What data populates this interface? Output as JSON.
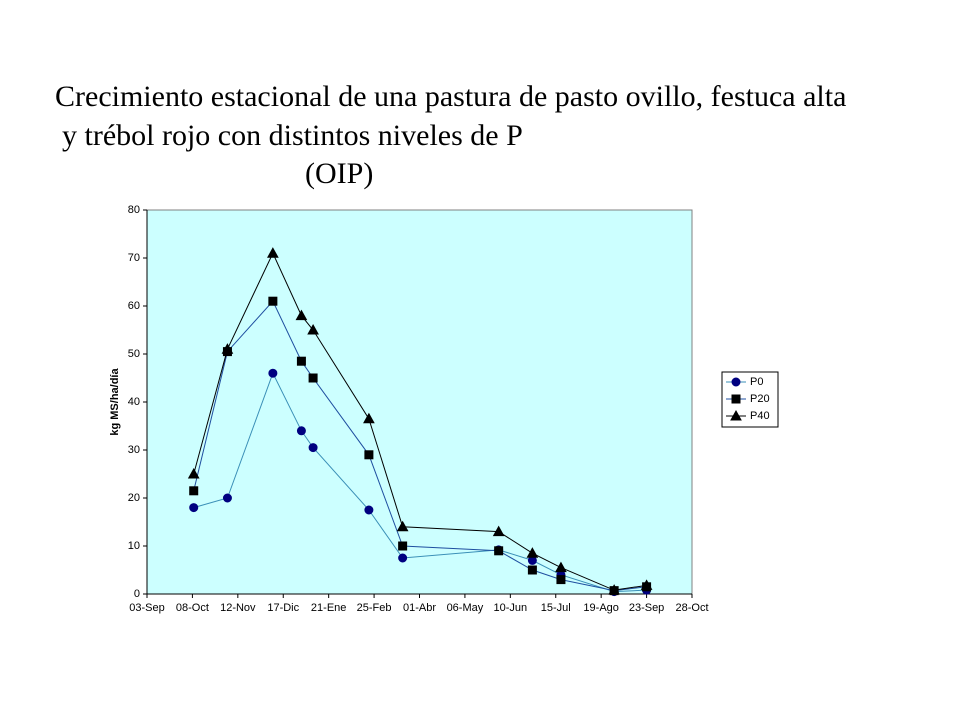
{
  "chart_data": {
    "type": "line",
    "title": [
      "Crecimiento estacional de una pastura de pasto ovillo,  festuca alta",
      "y trébol rojo con distintos niveles de P",
      "(OIP)"
    ],
    "y_label": "kg MS/ha/día",
    "x": [
      36,
      62,
      97,
      119,
      128,
      171,
      197,
      271,
      297,
      319,
      360,
      385
    ],
    "series": [
      {
        "name": "P0",
        "color": "#3a8fb7",
        "marker": "circle",
        "marker_color": "#000080",
        "values": [
          18,
          20,
          46,
          34,
          30.5,
          17.5,
          7.5,
          9.2,
          7,
          4,
          0.5,
          0.8
        ]
      },
      {
        "name": "P20",
        "color": "#1f4fa0",
        "marker": "square",
        "marker_color": "#000000",
        "values": [
          21.5,
          50.5,
          61,
          48.5,
          45,
          29,
          10,
          9,
          5,
          3,
          0.7,
          1.5
        ]
      },
      {
        "name": "P40",
        "color": "#000000",
        "marker": "triangle",
        "marker_color": "#000000",
        "values": [
          25,
          51,
          71,
          58,
          55,
          36.5,
          14,
          13,
          8.5,
          5.5,
          0.8,
          1.8
        ]
      }
    ],
    "xlim": [
      0,
      420
    ],
    "xticks": [
      {
        "value": 0,
        "label": "03-Sep"
      },
      {
        "value": 35,
        "label": "08-Oct"
      },
      {
        "value": 70,
        "label": "12-Nov"
      },
      {
        "value": 105,
        "label": "17-Dic"
      },
      {
        "value": 140,
        "label": "21-Ene"
      },
      {
        "value": 175,
        "label": "25-Feb"
      },
      {
        "value": 210,
        "label": "01-Abr"
      },
      {
        "value": 245,
        "label": "06-May"
      },
      {
        "value": 280,
        "label": "10-Jun"
      },
      {
        "value": 315,
        "label": "15-Jul"
      },
      {
        "value": 350,
        "label": "19-Ago"
      },
      {
        "value": 385,
        "label": "23-Sep"
      },
      {
        "value": 420,
        "label": "28-Oct"
      }
    ],
    "ylim": [
      0,
      80
    ],
    "yticks": [
      0,
      10,
      20,
      30,
      40,
      50,
      60,
      70,
      80
    ],
    "plot_background": "#ccffff",
    "grid": false,
    "legend": "right"
  }
}
